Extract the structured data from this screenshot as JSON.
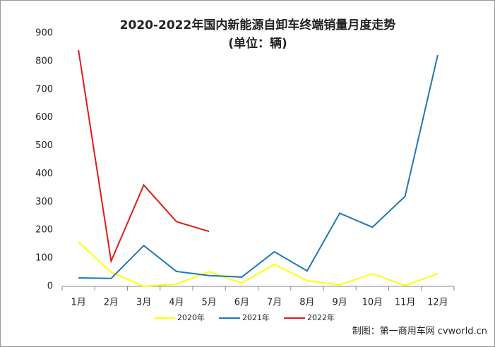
{
  "chart_data": {
    "type": "line",
    "title": "2020-2022年国内新能源自卸车终端销量月度走势",
    "subtitle": "(单位：辆)",
    "source": "制图：第一商用车网 cvworld.cn",
    "categories": [
      "1月",
      "2月",
      "3月",
      "4月",
      "5月",
      "6月",
      "7月",
      "8月",
      "9月",
      "10月",
      "11月",
      "12月"
    ],
    "series": [
      {
        "name": "2020年",
        "color": "#ffff00",
        "values": [
          158,
          50,
          0,
          8,
          52,
          12,
          78,
          20,
          5,
          45,
          3,
          45
        ]
      },
      {
        "name": "2021年",
        "color": "#1f77b4",
        "values": [
          30,
          28,
          145,
          53,
          38,
          33,
          123,
          55,
          260,
          210,
          320,
          822
        ]
      },
      {
        "name": "2022年",
        "color": "#e31a1c",
        "values": [
          840,
          90,
          360,
          230,
          195,
          null,
          null,
          null,
          null,
          null,
          null,
          null
        ]
      }
    ],
    "ylim": [
      0,
      900
    ],
    "yticks": [
      0,
      100,
      200,
      300,
      400,
      500,
      600,
      700,
      800,
      900
    ],
    "grid": false
  }
}
